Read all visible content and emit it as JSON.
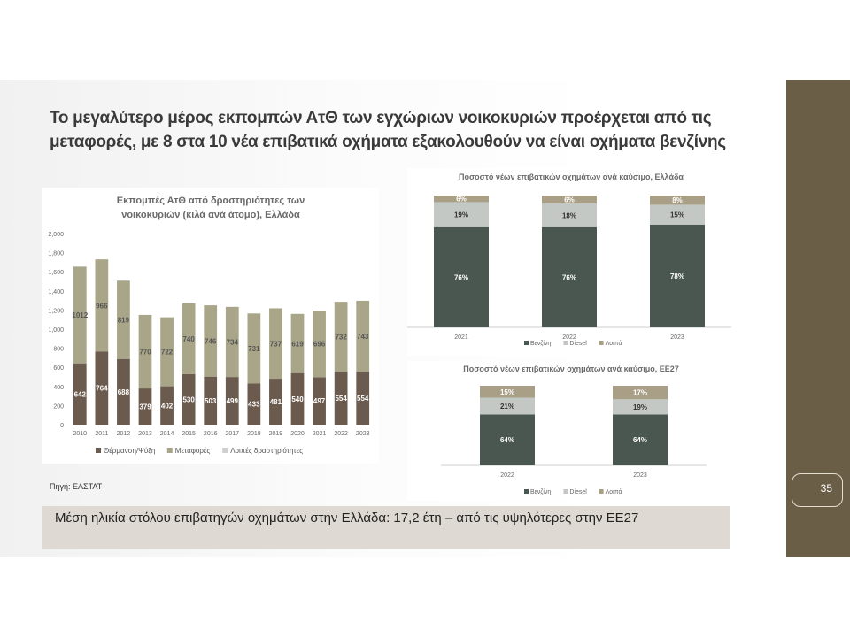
{
  "title": "Το μεγαλύτερο μέρος εκπομπών ΑτΘ των εγχώριων νοικοκυριών προέρχεται από τις μεταφορές, με 8 στα 10 νέα επιβατικά οχήματα εξακολουθούν να είναι οχήματα βενζίνης",
  "source": "Πηγή: ΕΛΣΤΑΤ",
  "banner": "Μέση ηλικία στόλου επιβατηγών οχημάτων στην Ελλάδα: 17,2 έτη – από τις υψηλότερες στην ΕΕ27",
  "page_number": "35",
  "colors": {
    "side_band": "#6b5e47",
    "dark": "#6b5b4e",
    "olive": "#a9a588",
    "light": "#cfcfcf",
    "benzine": "#4a5750",
    "diesel": "#c4c8c5",
    "other": "#a89f86",
    "banner": "#ded9d2"
  },
  "chart_data": [
    {
      "type": "bar",
      "stacked": true,
      "title_lines": [
        "Εκπομπές ΑτΘ από δραστηριότητες των",
        "νοικοκυριών (κιλά ανά άτομο), Ελλάδα"
      ],
      "categories": [
        "2010",
        "2011",
        "2012",
        "2013",
        "2014",
        "2015",
        "2016",
        "2017",
        "2018",
        "2019",
        "2020",
        "2021",
        "2022",
        "2023"
      ],
      "series": [
        {
          "name": "Θέρμανση/Ψύξη",
          "color": "#6b5b4e",
          "values": [
            642,
            764,
            688,
            379,
            402,
            530,
            503,
            499,
            433,
            481,
            540,
            497,
            554,
            554
          ]
        },
        {
          "name": "Μεταφορές",
          "color": "#a9a588",
          "values": [
            1012,
            966,
            819,
            770,
            722,
            740,
            746,
            734,
            731,
            737,
            619,
            696,
            732,
            743
          ]
        },
        {
          "name": "Λοιπές δραστηριότητες",
          "color": "#cfcfcf",
          "values": [
            0,
            0,
            0,
            0,
            0,
            0,
            0,
            0,
            0,
            0,
            0,
            0,
            0,
            0
          ]
        }
      ],
      "ylim": [
        0,
        2000
      ],
      "yticks": [
        "0",
        "200",
        "400",
        "600",
        "800",
        "1,000",
        "1,200",
        "1,400",
        "1,600",
        "1,800",
        "2,000"
      ],
      "grid": false,
      "legend": "bottom"
    },
    {
      "type": "bar",
      "stacked": true,
      "title": "Ποσοστό νέων επιβατικών οχημάτων ανά καύσιμο, Ελλάδα",
      "categories": [
        "2021",
        "2022",
        "2023"
      ],
      "series": [
        {
          "name": "Βενζίνη",
          "color": "#4a5750",
          "values": [
            76,
            76,
            78
          ],
          "labels": [
            "76%",
            "76%",
            "78%"
          ]
        },
        {
          "name": "Diesel",
          "color": "#c4c8c5",
          "values": [
            19,
            18,
            15
          ],
          "labels": [
            "19%",
            "18%",
            "15%"
          ]
        },
        {
          "name": "Λοιπά",
          "color": "#a89f86",
          "values": [
            6,
            6,
            8
          ],
          "labels": [
            "6%",
            "6%",
            "8%"
          ]
        }
      ],
      "ylim": [
        0,
        100
      ],
      "legend": "bottom"
    },
    {
      "type": "bar",
      "stacked": true,
      "title": "Ποσοστό νέων επιβατικών οχημάτων ανά καύσιμο, ΕΕ27",
      "categories": [
        "2022",
        "2023"
      ],
      "series": [
        {
          "name": "Βενζίνη",
          "color": "#4a5750",
          "values": [
            64,
            64
          ],
          "labels": [
            "64%",
            "64%"
          ]
        },
        {
          "name": "Diesel",
          "color": "#c4c8c5",
          "values": [
            21,
            19
          ],
          "labels": [
            "21%",
            "19%"
          ]
        },
        {
          "name": "Λοιπά",
          "color": "#a89f86",
          "values": [
            15,
            17
          ],
          "labels": [
            "15%",
            "17%"
          ]
        }
      ],
      "ylim": [
        0,
        100
      ],
      "legend": "bottom"
    }
  ]
}
